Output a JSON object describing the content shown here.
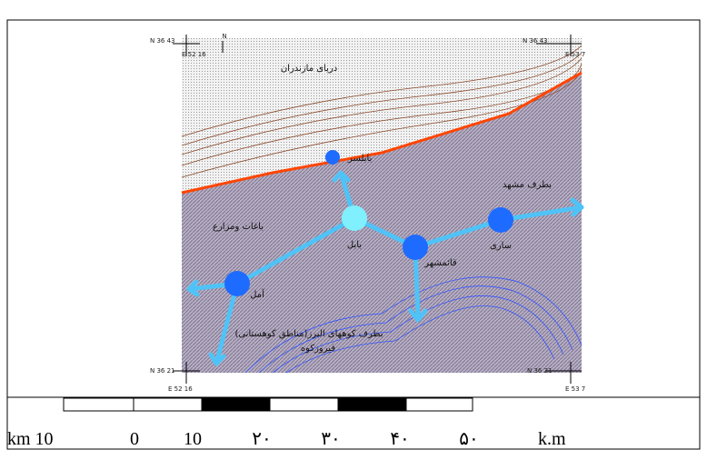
{
  "map": {
    "north": "N",
    "coords": {
      "tl_n": "N 36  43",
      "tl_e": "E 52  16",
      "tr_n": "N 36  43",
      "tr_e": "E 53   7",
      "bl_n": "N 36  21",
      "bl_e": "E 52  16",
      "br_n": "N 36  21",
      "br_e": "E 53   7"
    },
    "places": {
      "sea": "دریای مازندران",
      "babolsar": "بابلسر",
      "mashhad": "بطرف مشهد",
      "gardens": "باغات ومزارع",
      "babol": "بابل",
      "ghaemshahr": "قائمشهر",
      "sari": "ساری",
      "amol": "آمل",
      "alborz": "بطرف کوههای البرز(مناطق کوهستانی)",
      "firuzkuh": "فیروزکوه"
    },
    "scale": [
      "km 10",
      "0",
      "10",
      "۲۰",
      "۳۰",
      "۴۰",
      "۵۰",
      "k.m"
    ]
  }
}
